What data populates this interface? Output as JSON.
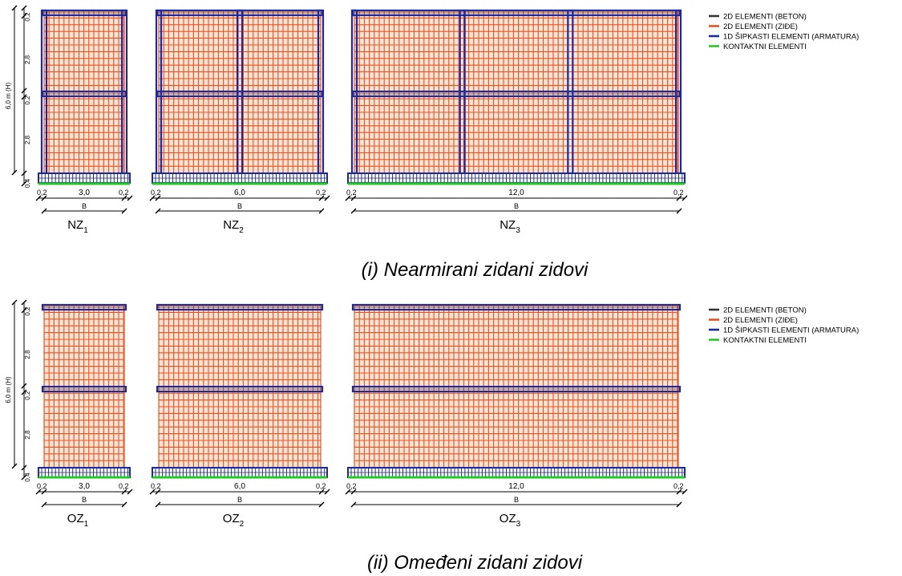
{
  "colors": {
    "beton": "#333333",
    "zide": "#e8521e",
    "armatura": "#1a2a9e",
    "kontakt": "#22cc22",
    "dim": "#000000"
  },
  "legend": [
    {
      "label": "2D ELEMENTI (BETON)",
      "color_key": "beton"
    },
    {
      "label": "2D ELEMENTI (ZIĐE)",
      "color_key": "zide"
    },
    {
      "label": "1D ŠIPKASTI ELEMENTI (ARMATURA)",
      "color_key": "armatura"
    },
    {
      "label": "KONTAKTNI ELEMENTI",
      "color_key": "kontakt"
    }
  ],
  "height_dims": {
    "total": "6,0 m (H)",
    "segments": [
      "0,2",
      "2,8",
      "0,2",
      "2,8",
      "0,4"
    ]
  },
  "panels": [
    {
      "caption": "(i)  Nearmirani zidani zidovi",
      "type": "NZ",
      "walls": [
        {
          "name": "NZ",
          "sub": "1",
          "width_label": "3,0",
          "edge_label": "0,2",
          "b_label": "B",
          "columns": 2
        },
        {
          "name": "NZ",
          "sub": "2",
          "width_label": "6,0",
          "edge_label": "0,2",
          "b_label": "B",
          "columns": 3
        },
        {
          "name": "NZ",
          "sub": "3",
          "width_label": "12,0",
          "edge_label": "0,2",
          "b_label": "B",
          "columns": 4
        }
      ]
    },
    {
      "caption": "(ii)  Omeđeni zidani zidovi",
      "type": "OZ",
      "walls": [
        {
          "name": "OZ",
          "sub": "1",
          "width_label": "3,0",
          "edge_label": "0,2",
          "b_label": "B",
          "columns": 0
        },
        {
          "name": "OZ",
          "sub": "2",
          "width_label": "6,0",
          "edge_label": "0,2",
          "b_label": "B",
          "columns": 0
        },
        {
          "name": "OZ",
          "sub": "3",
          "width_label": "12,0",
          "edge_label": "0,2",
          "b_label": "B",
          "columns": 0
        }
      ]
    }
  ]
}
